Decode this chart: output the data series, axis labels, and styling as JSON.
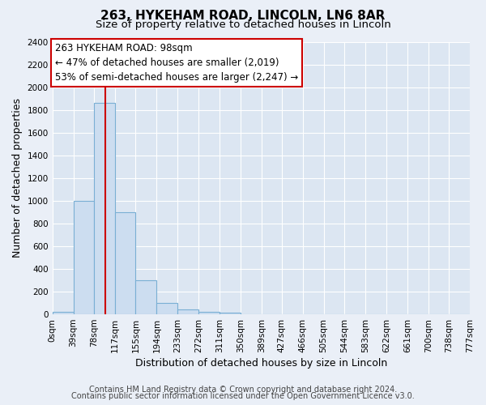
{
  "title": "263, HYKEHAM ROAD, LINCOLN, LN6 8AR",
  "subtitle": "Size of property relative to detached houses in Lincoln",
  "xlabel": "Distribution of detached houses by size in Lincoln",
  "ylabel": "Number of detached properties",
  "bar_edges": [
    0,
    39,
    78,
    117,
    155,
    194,
    233,
    272,
    311,
    350,
    389,
    427,
    466,
    505,
    544,
    583,
    622,
    661,
    700,
    738,
    777
  ],
  "bar_heights": [
    20,
    1000,
    1860,
    900,
    300,
    100,
    40,
    25,
    15,
    0,
    0,
    0,
    0,
    0,
    0,
    0,
    0,
    0,
    0,
    0
  ],
  "tick_labels": [
    "0sqm",
    "39sqm",
    "78sqm",
    "117sqm",
    "155sqm",
    "194sqm",
    "233sqm",
    "272sqm",
    "311sqm",
    "350sqm",
    "389sqm",
    "427sqm",
    "466sqm",
    "505sqm",
    "544sqm",
    "583sqm",
    "622sqm",
    "661sqm",
    "700sqm",
    "738sqm",
    "777sqm"
  ],
  "bar_color": "#ccddf0",
  "bar_edge_color": "#7aafd4",
  "vline_x": 98,
  "vline_color": "#cc0000",
  "ylim": [
    0,
    2400
  ],
  "yticks": [
    0,
    200,
    400,
    600,
    800,
    1000,
    1200,
    1400,
    1600,
    1800,
    2000,
    2200,
    2400
  ],
  "annotation_title": "263 HYKEHAM ROAD: 98sqm",
  "annotation_line1": "← 47% of detached houses are smaller (2,019)",
  "annotation_line2": "53% of semi-detached houses are larger (2,247) →",
  "annotation_box_color": "#ffffff",
  "annotation_box_edge": "#cc0000",
  "footer_line1": "Contains HM Land Registry data © Crown copyright and database right 2024.",
  "footer_line2": "Contains public sector information licensed under the Open Government Licence v3.0.",
  "bg_color": "#eaeff7",
  "plot_bg_color": "#dce6f2",
  "grid_color": "#ffffff",
  "title_fontsize": 11,
  "subtitle_fontsize": 9.5,
  "axis_label_fontsize": 9,
  "tick_fontsize": 7.5,
  "footer_fontsize": 7,
  "annot_fontsize": 8.5
}
